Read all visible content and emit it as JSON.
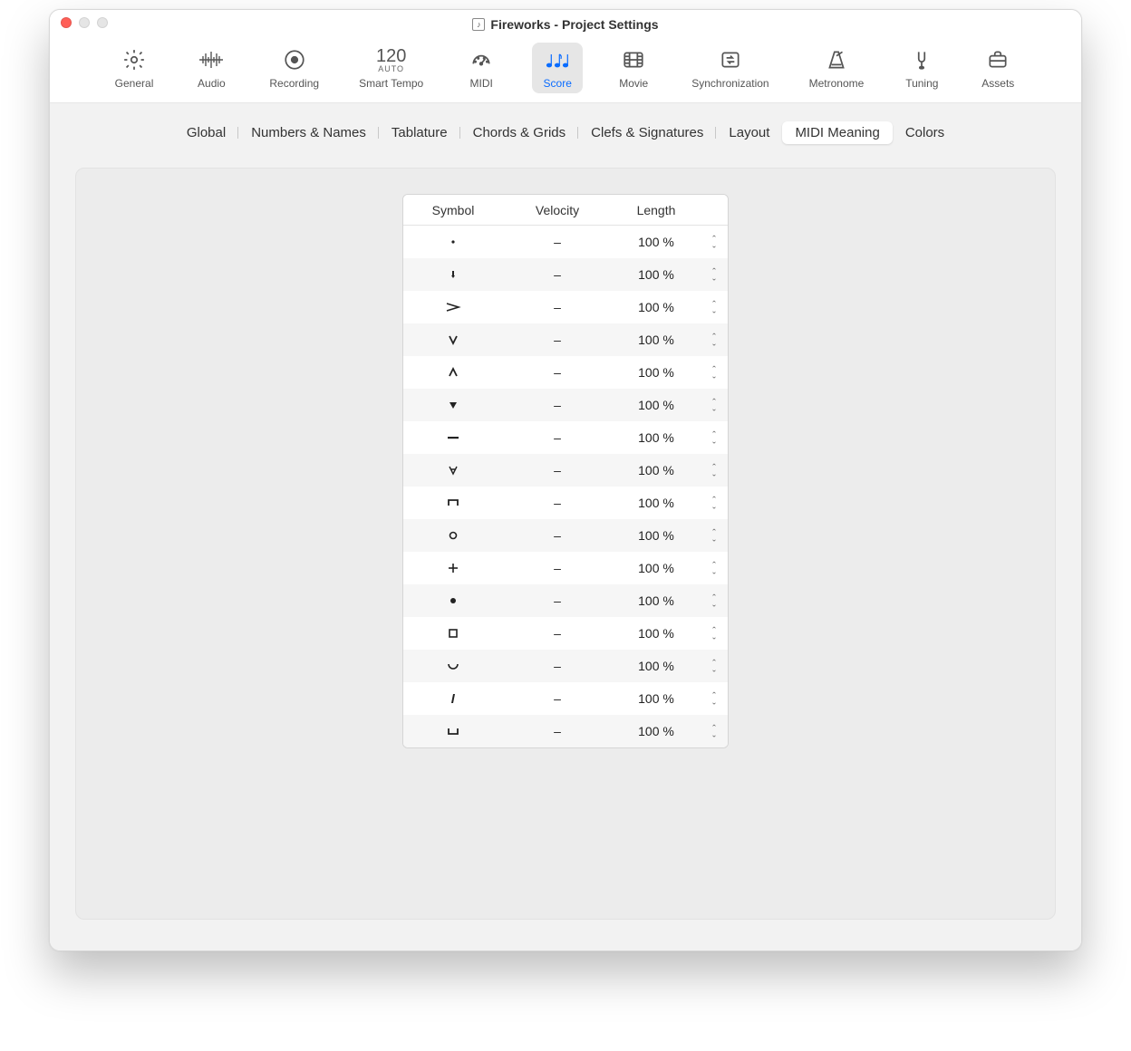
{
  "window": {
    "title": "Fireworks - Project Settings"
  },
  "colors": {
    "accent": "#0a6cff",
    "toolbar_border": "#e6e6e6",
    "content_bg": "#f2f2f2",
    "panel_bg": "#ececec",
    "table_border": "#d5d5d5",
    "row_alt": "#f6f6f6",
    "text": "#333333"
  },
  "toolbar": {
    "items": [
      {
        "id": "general",
        "label": "General",
        "icon": "gear"
      },
      {
        "id": "audio",
        "label": "Audio",
        "icon": "wave"
      },
      {
        "id": "recording",
        "label": "Recording",
        "icon": "record"
      },
      {
        "id": "smarttempo",
        "label": "Smart Tempo",
        "icon": "tempo",
        "tempo_value": "120",
        "tempo_sub": "AUTO"
      },
      {
        "id": "midi",
        "label": "MIDI",
        "icon": "gauge"
      },
      {
        "id": "score",
        "label": "Score",
        "icon": "notes",
        "active": true
      },
      {
        "id": "movie",
        "label": "Movie",
        "icon": "film"
      },
      {
        "id": "sync",
        "label": "Synchronization",
        "icon": "sync"
      },
      {
        "id": "metronome",
        "label": "Metronome",
        "icon": "metronome"
      },
      {
        "id": "tuning",
        "label": "Tuning",
        "icon": "fork"
      },
      {
        "id": "assets",
        "label": "Assets",
        "icon": "briefcase"
      }
    ]
  },
  "subtabs": {
    "items": [
      {
        "label": "Global"
      },
      {
        "label": "Numbers & Names"
      },
      {
        "label": "Tablature"
      },
      {
        "label": "Chords & Grids"
      },
      {
        "label": "Clefs & Signatures"
      },
      {
        "label": "Layout"
      },
      {
        "label": "MIDI Meaning",
        "active": true
      },
      {
        "label": "Colors"
      }
    ]
  },
  "table": {
    "headers": {
      "symbol": "Symbol",
      "velocity": "Velocity",
      "length": "Length"
    },
    "rows": [
      {
        "symbol": "dot-small",
        "velocity": "–",
        "length": "100 %"
      },
      {
        "symbol": "stroke",
        "velocity": "–",
        "length": "100 %"
      },
      {
        "symbol": "accent",
        "velocity": "–",
        "length": "100 %"
      },
      {
        "symbol": "v-down",
        "velocity": "–",
        "length": "100 %"
      },
      {
        "symbol": "caret-up",
        "velocity": "–",
        "length": "100 %"
      },
      {
        "symbol": "triangle-down",
        "velocity": "–",
        "length": "100 %"
      },
      {
        "symbol": "dash",
        "velocity": "–",
        "length": "100 %"
      },
      {
        "symbol": "v-open",
        "velocity": "–",
        "length": "100 %"
      },
      {
        "symbol": "bracket-down",
        "velocity": "–",
        "length": "100 %"
      },
      {
        "symbol": "circle-open",
        "velocity": "–",
        "length": "100 %"
      },
      {
        "symbol": "plus",
        "velocity": "–",
        "length": "100 %"
      },
      {
        "symbol": "dot-filled",
        "velocity": "–",
        "length": "100 %"
      },
      {
        "symbol": "square-open",
        "velocity": "–",
        "length": "100 %"
      },
      {
        "symbol": "arc",
        "velocity": "–",
        "length": "100 %"
      },
      {
        "symbol": "slash",
        "velocity": "–",
        "length": "100 %"
      },
      {
        "symbol": "bracket-up",
        "velocity": "–",
        "length": "100 %"
      }
    ]
  }
}
